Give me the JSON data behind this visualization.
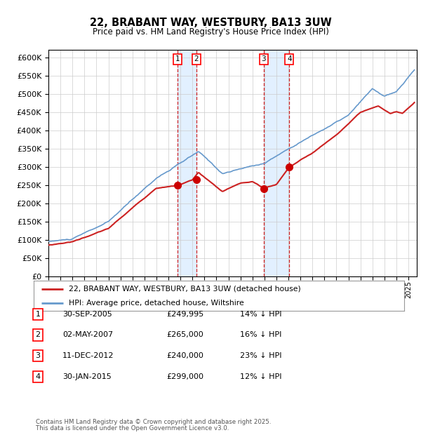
{
  "title": "22, BRABANT WAY, WESTBURY, BA13 3UW",
  "subtitle": "Price paid vs. HM Land Registry's House Price Index (HPI)",
  "legend_red": "22, BRABANT WAY, WESTBURY, BA13 3UW (detached house)",
  "legend_blue": "HPI: Average price, detached house, Wiltshire",
  "footer1": "Contains HM Land Registry data © Crown copyright and database right 2025.",
  "footer2": "This data is licensed under the Open Government Licence v3.0.",
  "transactions": [
    {
      "num": 1,
      "date": "30-SEP-2005",
      "price": "£249,995",
      "hpi": "14% ↓ HPI",
      "year": 2005.75
    },
    {
      "num": 2,
      "date": "02-MAY-2007",
      "price": "£265,000",
      "hpi": "16% ↓ HPI",
      "year": 2007.33
    },
    {
      "num": 3,
      "date": "11-DEC-2012",
      "price": "£240,000",
      "hpi": "23% ↓ HPI",
      "year": 2012.94
    },
    {
      "num": 4,
      "date": "30-JAN-2015",
      "price": "£299,000",
      "hpi": "12% ↓ HPI",
      "year": 2015.08
    }
  ],
  "red_dot_prices": [
    249995,
    265000,
    240000,
    299000
  ],
  "hpi_color": "#6699cc",
  "red_color": "#cc2222",
  "dot_color": "#cc0000",
  "shade_color": "#ddeeff",
  "dashed_color": "#cc0000",
  "grid_color": "#cccccc",
  "bg_color": "#ffffff",
  "ylim": [
    0,
    620000
  ],
  "yticks": [
    0,
    50000,
    100000,
    150000,
    200000,
    250000,
    300000,
    350000,
    400000,
    450000,
    500000,
    550000,
    600000
  ],
  "xlim_start": 1995.0,
  "xlim_end": 2025.7
}
